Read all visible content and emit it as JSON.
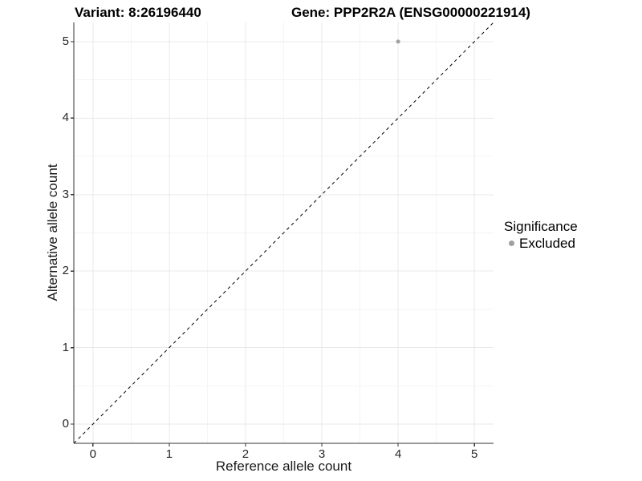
{
  "chart_data": {
    "type": "scatter",
    "title_left": "Variant: 8:26196440",
    "title_right": "Gene: PPP2R2A (ENSG00000221914)",
    "xlabel": "Reference allele count",
    "ylabel": "Alternative allele count",
    "xlim": [
      -0.25,
      5.25
    ],
    "ylim": [
      -0.25,
      5.25
    ],
    "x_ticks": [
      0,
      1,
      2,
      3,
      4,
      5
    ],
    "y_ticks": [
      0,
      1,
      2,
      3,
      4,
      5
    ],
    "x_minor_ticks": [
      0.5,
      1.5,
      2.5,
      3.5,
      4.5
    ],
    "y_minor_ticks": [
      0.5,
      1.5,
      2.5,
      3.5,
      4.5
    ],
    "grid": "major+minor",
    "reference_line": {
      "kind": "identity y=x",
      "style": "dashed",
      "color": "#000000"
    },
    "series": [
      {
        "name": "Excluded",
        "color": "#a0a0a0",
        "point_radius": 2.5,
        "points": [
          [
            4,
            5
          ]
        ]
      }
    ],
    "legend": {
      "title": "Significance",
      "position": "right",
      "entries": [
        {
          "label": "Excluded",
          "color": "#a0a0a0"
        }
      ]
    },
    "colors": {
      "background": "#ffffff",
      "grid_major": "#e8e8e8",
      "grid_minor": "#f4f4f4",
      "axis": "#333333",
      "tick_text": "#262626"
    }
  }
}
